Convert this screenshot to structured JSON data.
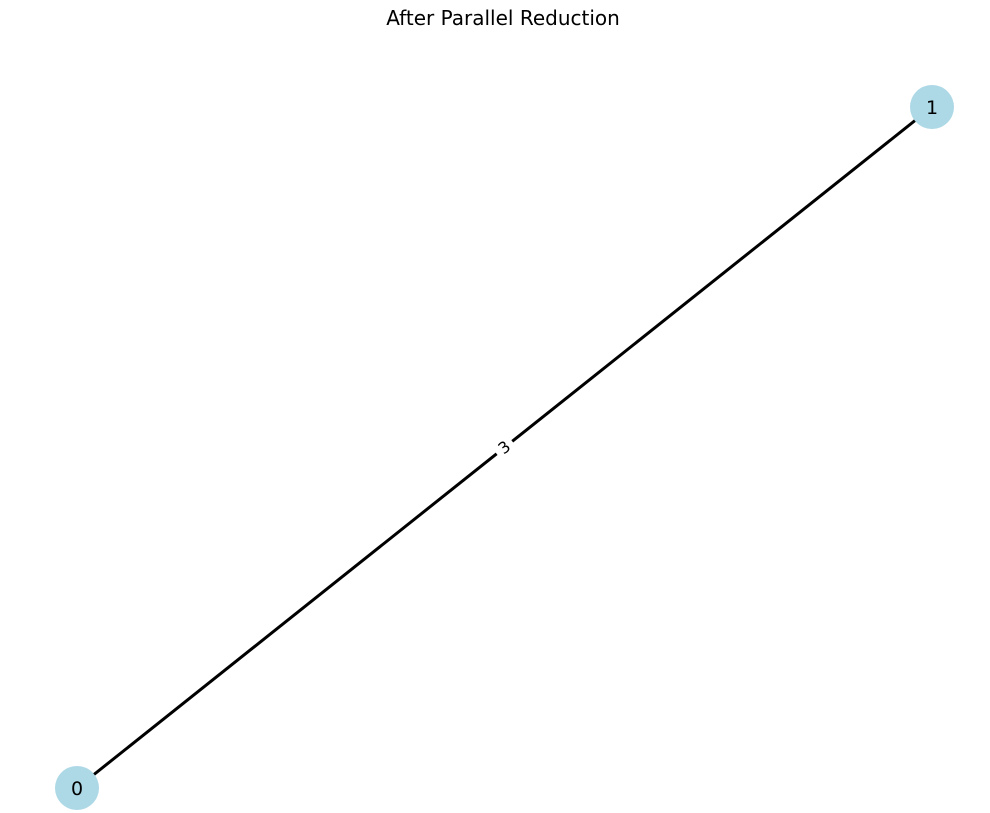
{
  "title": "After Parallel Reduction",
  "graph": {
    "node_color": "#add8e6",
    "edge_color": "#000000",
    "nodes": [
      {
        "id": "0",
        "label": "0"
      },
      {
        "id": "1",
        "label": "1"
      }
    ],
    "edges": [
      {
        "source": "0",
        "target": "1",
        "label": "3"
      }
    ]
  }
}
